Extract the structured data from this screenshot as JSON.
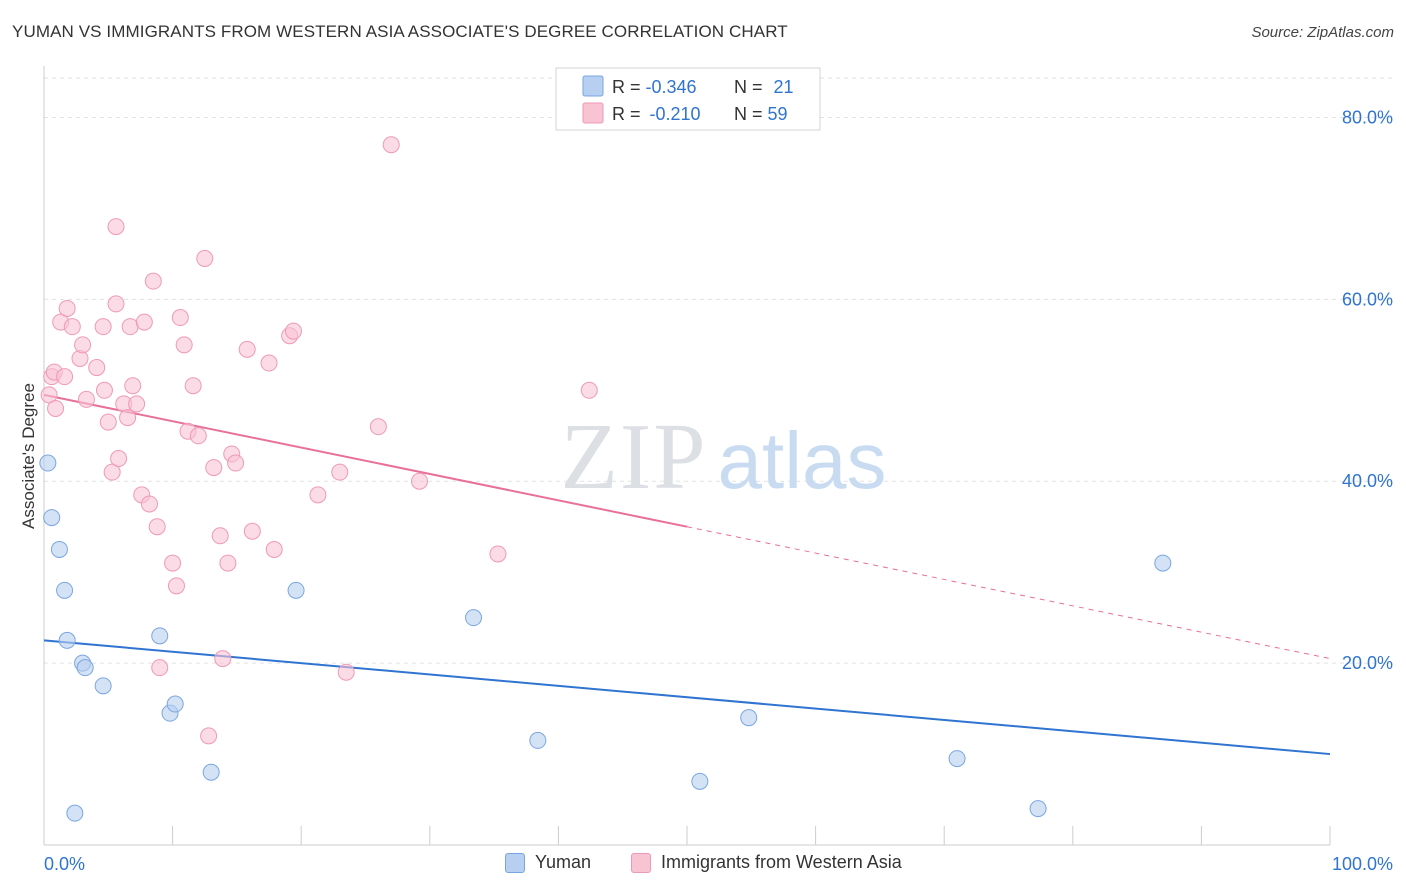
{
  "chart_data": {
    "type": "scatter",
    "title": "YUMAN VS IMMIGRANTS FROM WESTERN ASIA ASSOCIATE'S DEGREE CORRELATION CHART",
    "source": "Source: ZipAtlas.com",
    "xlabel": "",
    "ylabel": "Associate's Degree",
    "xlim": [
      0,
      100
    ],
    "ylim": [
      0,
      85
    ],
    "x_tick_labels": [
      "0.0%",
      "100.0%"
    ],
    "y_tick_labels": [
      "20.0%",
      "40.0%",
      "60.0%",
      "80.0%"
    ],
    "y_tick_values": [
      20,
      40,
      60,
      80
    ],
    "watermark": {
      "zip": "ZIP",
      "atlas": "atlas"
    },
    "stats_legend": [
      {
        "r_label": "R = ",
        "r_value": "-0.346",
        "n_label": "N = ",
        "n_value": "21"
      },
      {
        "r_label": "R = ",
        "r_value": "-0.210",
        "n_label": "N = ",
        "n_value": "59"
      }
    ],
    "colors": {
      "yuman_fill": "#b7cff0",
      "yuman_stroke": "#7aa6e0",
      "yuman_line": "#2f74d0",
      "western_fill": "#f8c3d3",
      "western_stroke": "#ef9ab5",
      "western_line": "#e8709a",
      "accent_text": "#2f74d0"
    },
    "series": [
      {
        "name": "Yuman",
        "trend": {
          "x0": 0,
          "y0": 22.5,
          "x1": 100,
          "y1": 10.0,
          "dashed_from": null
        },
        "points": [
          [
            0.3,
            42.0
          ],
          [
            0.6,
            36.0
          ],
          [
            1.2,
            32.5
          ],
          [
            1.6,
            28.0
          ],
          [
            1.8,
            22.5
          ],
          [
            3.0,
            20.0
          ],
          [
            3.2,
            19.5
          ],
          [
            4.6,
            17.5
          ],
          [
            9.0,
            23.0
          ],
          [
            9.8,
            14.5
          ],
          [
            10.2,
            15.5
          ],
          [
            13.0,
            8.0
          ],
          [
            19.6,
            28.0
          ],
          [
            33.4,
            25.0
          ],
          [
            38.4,
            11.5
          ],
          [
            51.0,
            7.0
          ],
          [
            54.8,
            14.0
          ],
          [
            71.0,
            9.5
          ],
          [
            77.3,
            4.0
          ],
          [
            87.0,
            31.0
          ],
          [
            2.4,
            3.5
          ]
        ]
      },
      {
        "name": "Immigrants from Western Asia",
        "trend": {
          "x0": 0,
          "y0": 49.5,
          "x1": 100,
          "y1": 20.5,
          "dashed_from": 50
        },
        "points": [
          [
            0.4,
            49.5
          ],
          [
            0.6,
            51.5
          ],
          [
            0.8,
            52.0
          ],
          [
            0.9,
            48.0
          ],
          [
            1.3,
            57.5
          ],
          [
            1.6,
            51.5
          ],
          [
            1.8,
            59.0
          ],
          [
            2.2,
            57.0
          ],
          [
            2.8,
            53.5
          ],
          [
            3.0,
            55.0
          ],
          [
            3.3,
            49.0
          ],
          [
            4.1,
            52.5
          ],
          [
            4.6,
            57.0
          ],
          [
            4.7,
            50.0
          ],
          [
            5.0,
            46.5
          ],
          [
            5.3,
            41.0
          ],
          [
            5.6,
            59.5
          ],
          [
            5.8,
            42.5
          ],
          [
            6.2,
            48.5
          ],
          [
            6.5,
            47.0
          ],
          [
            6.7,
            57.0
          ],
          [
            6.9,
            50.5
          ],
          [
            7.2,
            48.5
          ],
          [
            7.6,
            38.5
          ],
          [
            7.8,
            57.5
          ],
          [
            8.2,
            37.5
          ],
          [
            8.5,
            62.0
          ],
          [
            8.8,
            35.0
          ],
          [
            9.0,
            19.5
          ],
          [
            10.0,
            31.0
          ],
          [
            10.3,
            28.5
          ],
          [
            10.6,
            58.0
          ],
          [
            10.9,
            55.0
          ],
          [
            11.2,
            45.5
          ],
          [
            11.6,
            50.5
          ],
          [
            12.0,
            45.0
          ],
          [
            12.5,
            64.5
          ],
          [
            12.8,
            12.0
          ],
          [
            13.2,
            41.5
          ],
          [
            13.7,
            34.0
          ],
          [
            13.9,
            20.5
          ],
          [
            14.3,
            31.0
          ],
          [
            14.6,
            43.0
          ],
          [
            14.9,
            42.0
          ],
          [
            15.8,
            54.5
          ],
          [
            16.2,
            34.5
          ],
          [
            17.5,
            53.0
          ],
          [
            17.9,
            32.5
          ],
          [
            19.1,
            56.0
          ],
          [
            19.4,
            56.5
          ],
          [
            21.3,
            38.5
          ],
          [
            23.0,
            41.0
          ],
          [
            23.5,
            19.0
          ],
          [
            26.0,
            46.0
          ],
          [
            27.0,
            77.0
          ],
          [
            29.2,
            40.0
          ],
          [
            35.3,
            32.0
          ],
          [
            42.4,
            50.0
          ],
          [
            5.6,
            68.0
          ]
        ]
      }
    ]
  }
}
